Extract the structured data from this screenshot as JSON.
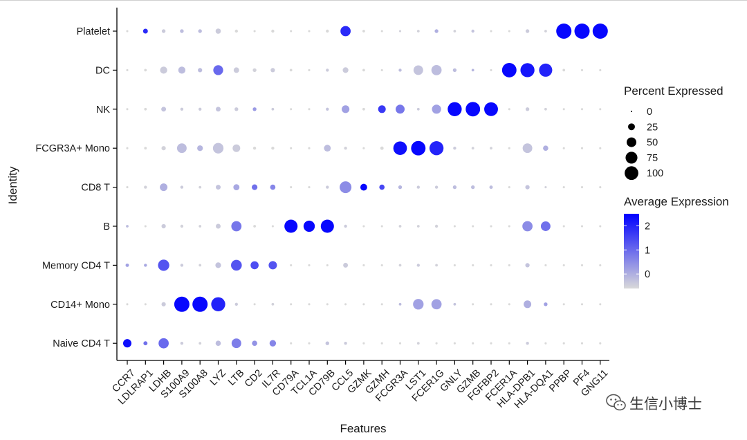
{
  "chart_data": {
    "type": "dot",
    "xlabel": "Features",
    "ylabel": "Identity",
    "features": [
      "CCR7",
      "LDLRAP1",
      "LDHB",
      "S100A9",
      "S100A8",
      "LYZ",
      "LTB",
      "CD2",
      "IL7R",
      "CD79A",
      "TCL1A",
      "CD79B",
      "CCL5",
      "GZMK",
      "GZMH",
      "FCGR3A",
      "LST1",
      "FCER1G",
      "GNLY",
      "GZMB",
      "FGFBP2",
      "FCER1A",
      "HLA-DPB1",
      "HLA-DQA1",
      "PPBP",
      "PF4",
      "GNG11"
    ],
    "identities": [
      "Platelet",
      "DC",
      "NK",
      "FCGR3A+ Mono",
      "CD8 T",
      "B",
      "Memory CD4 T",
      "CD14+ Mono",
      "Naive CD4 T"
    ],
    "percent_expressed": [
      [
        2,
        10,
        6,
        6,
        6,
        12,
        4,
        2,
        4,
        2,
        2,
        4,
        45,
        3,
        2,
        2,
        3,
        6,
        3,
        4,
        2,
        2,
        6,
        3,
        100,
        100,
        100
      ],
      [
        2,
        3,
        22,
        22,
        8,
        42,
        13,
        6,
        8,
        3,
        2,
        4,
        14,
        3,
        2,
        4,
        40,
        45,
        6,
        3,
        2,
        90,
        85,
        75,
        3,
        2,
        2
      ],
      [
        2,
        3,
        10,
        4,
        4,
        10,
        6,
        6,
        3,
        2,
        2,
        4,
        26,
        3,
        25,
        35,
        3,
        36,
        85,
        90,
        82,
        2,
        6,
        3,
        2,
        2,
        2
      ],
      [
        2,
        3,
        8,
        40,
        14,
        48,
        25,
        4,
        4,
        2,
        2,
        20,
        4,
        2,
        5,
        80,
        90,
        85,
        4,
        3,
        3,
        2,
        40,
        12,
        2,
        2,
        2
      ],
      [
        2,
        4,
        25,
        4,
        3,
        10,
        16,
        14,
        12,
        2,
        2,
        4,
        60,
        20,
        12,
        6,
        4,
        4,
        6,
        6,
        5,
        2,
        8,
        2,
        2,
        2,
        2
      ],
      [
        3,
        2,
        8,
        4,
        3,
        10,
        45,
        3,
        2,
        75,
        55,
        75,
        4,
        2,
        2,
        3,
        3,
        4,
        2,
        2,
        2,
        2,
        45,
        40,
        2,
        2,
        2
      ],
      [
        5,
        4,
        55,
        4,
        3,
        14,
        50,
        28,
        30,
        2,
        2,
        2,
        10,
        2,
        2,
        3,
        4,
        3,
        2,
        2,
        2,
        2,
        8,
        2,
        2,
        2,
        2
      ],
      [
        2,
        2,
        8,
        100,
        100,
        85,
        4,
        2,
        3,
        2,
        2,
        2,
        2,
        2,
        2,
        3,
        48,
        45,
        3,
        2,
        2,
        2,
        25,
        6,
        2,
        2,
        2
      ],
      [
        30,
        7,
        45,
        4,
        3,
        12,
        40,
        12,
        18,
        2,
        2,
        6,
        4,
        2,
        2,
        2,
        3,
        2,
        2,
        2,
        2,
        2,
        4,
        2,
        2,
        2,
        2
      ]
    ],
    "average_expression": [
      [
        -0.6,
        1.9,
        -0.4,
        -0.2,
        -0.2,
        -0.4,
        -0.6,
        -0.6,
        -0.6,
        -0.6,
        -0.6,
        -0.6,
        1.9,
        -0.6,
        -0.6,
        -0.5,
        -0.5,
        0.0,
        -0.5,
        -0.3,
        -0.6,
        -0.6,
        -0.4,
        -0.5,
        2.4,
        2.4,
        2.4
      ],
      [
        -0.6,
        -0.6,
        -0.4,
        -0.2,
        -0.2,
        1.0,
        -0.4,
        -0.5,
        -0.4,
        -0.6,
        -0.6,
        -0.4,
        -0.4,
        -0.6,
        -0.6,
        -0.2,
        -0.3,
        -0.2,
        -0.2,
        -0.1,
        -0.6,
        2.4,
        2.2,
        2.0,
        -0.6,
        -0.6,
        -0.6
      ],
      [
        -0.6,
        -0.6,
        -0.3,
        -0.4,
        -0.4,
        -0.3,
        -0.4,
        0.3,
        -0.4,
        -0.6,
        -0.6,
        -0.3,
        0.2,
        -0.6,
        1.7,
        0.8,
        -0.4,
        0.2,
        2.4,
        2.4,
        2.4,
        -0.6,
        -0.4,
        -0.5,
        -0.6,
        -0.6,
        -0.6
      ],
      [
        -0.6,
        -0.6,
        -0.5,
        -0.2,
        -0.1,
        -0.3,
        -0.4,
        -0.6,
        -0.6,
        -0.6,
        -0.6,
        -0.2,
        -0.5,
        -0.6,
        -0.6,
        2.3,
        2.4,
        2.0,
        -0.4,
        -0.5,
        -0.5,
        -0.6,
        -0.3,
        0.0,
        -0.6,
        -0.6,
        -0.6
      ],
      [
        -0.6,
        -0.5,
        0.0,
        -0.4,
        -0.5,
        -0.3,
        0.1,
        0.9,
        0.6,
        -0.6,
        -0.6,
        -0.4,
        0.5,
        2.4,
        1.5,
        -0.1,
        -0.4,
        -0.4,
        -0.2,
        -0.2,
        -0.2,
        -0.6,
        -0.3,
        -0.5,
        -0.6,
        -0.6,
        -0.6
      ],
      [
        -0.2,
        -0.6,
        -0.4,
        -0.5,
        -0.5,
        -0.4,
        0.8,
        -0.6,
        -0.6,
        2.4,
        2.4,
        2.4,
        -0.4,
        -0.6,
        -0.6,
        -0.5,
        -0.5,
        -0.5,
        -0.6,
        -0.6,
        -0.6,
        -0.6,
        0.5,
        0.9,
        -0.6,
        -0.6,
        -0.6
      ],
      [
        0.2,
        0.1,
        1.3,
        -0.4,
        -0.5,
        -0.3,
        1.3,
        1.4,
        1.3,
        -0.6,
        -0.6,
        -0.6,
        -0.4,
        -0.6,
        -0.6,
        -0.5,
        -0.4,
        -0.5,
        -0.6,
        -0.6,
        -0.6,
        -0.6,
        -0.3,
        -0.6,
        -0.6,
        -0.6,
        -0.6
      ],
      [
        -0.6,
        -0.6,
        -0.4,
        2.4,
        2.4,
        2.0,
        -0.4,
        -0.6,
        -0.5,
        -0.6,
        -0.6,
        -0.6,
        -0.6,
        -0.6,
        -0.6,
        -0.2,
        0.2,
        0.2,
        -0.3,
        -0.6,
        -0.6,
        -0.6,
        0.0,
        0.2,
        -0.6,
        -0.6,
        -0.6
      ],
      [
        2.3,
        0.9,
        1.0,
        -0.4,
        -0.5,
        -0.2,
        0.7,
        0.4,
        0.6,
        -0.6,
        -0.6,
        -0.3,
        -0.4,
        -0.6,
        -0.6,
        -0.6,
        -0.5,
        -0.6,
        -0.6,
        -0.6,
        -0.6,
        -0.6,
        -0.4,
        -0.6,
        -0.6,
        -0.6,
        -0.6
      ]
    ],
    "size_legend": {
      "title": "Percent Expressed",
      "breaks": [
        0,
        25,
        50,
        75,
        100
      ],
      "labels": [
        "0",
        "25",
        "50",
        "75",
        "100"
      ]
    },
    "color_legend": {
      "title": "Average Expression",
      "breaks": [
        0,
        1,
        2
      ],
      "labels": [
        "0",
        "1",
        "2"
      ],
      "range": [
        -0.6,
        2.5
      ],
      "low_color": "#d9d9d9",
      "high_color": "#0000ff"
    },
    "grid": false,
    "legend_position": "right"
  },
  "watermark": {
    "text": "生信小博士",
    "icon": "wechat-icon"
  }
}
